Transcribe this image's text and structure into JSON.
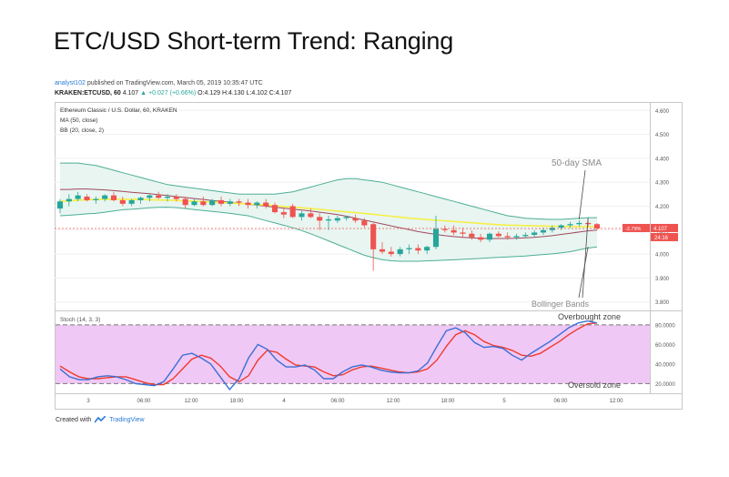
{
  "page": {
    "title": "ETC/USD Short-term Trend: Ranging"
  },
  "header": {
    "author": "analyst102",
    "published": "published on TradingView.com, March 05, 2019 10:35:47 UTC",
    "symbol": "KRAKEN:ETCUSD, 60",
    "last": "4.107",
    "change": "+0.027 (+0.66%)",
    "ohlc": "O:4.129 H:4.130 L:4.102 C:4.107"
  },
  "footer": {
    "created_with": "Created with",
    "brand": "TradingView"
  },
  "colors": {
    "up_candle": "#26a69a",
    "down_candle": "#ef5350",
    "sma": "#f5f046",
    "bb_fill": "#e6f4ef",
    "bb_line": "#4dae95",
    "bb_basis": "#a1495d",
    "stoch_k": "#3b6fd4",
    "stoch_d": "#ef3b2c",
    "stoch_band": "#f0c8f5",
    "price_tag": "#ef5350"
  },
  "chart_data": [
    {
      "type": "candlestick",
      "legend": [
        "Ethereum Classic / U.S. Dollar, 60, KRAKEN",
        "MA (50, close)",
        "BB (20, close, 2)"
      ],
      "ylim": [
        3.78,
        4.62
      ],
      "y_ticks": [
        "4.600",
        "4.500",
        "4.400",
        "4.300",
        "4.200",
        "4.100",
        "4.000",
        "3.900",
        "3.800"
      ],
      "x_tick_labels": [
        "3",
        "06:00",
        "12:00",
        "18:00",
        "4",
        "06:00",
        "12:00",
        "18:00",
        "5",
        "06:00",
        "12:00"
      ],
      "last_price_label": "4.107",
      "change_label": "-2.79%",
      "countdown_label": "24:16",
      "candles": [
        {
          "o": 4.19,
          "h": 4.23,
          "l": 4.17,
          "c": 4.22
        },
        {
          "o": 4.22,
          "h": 4.25,
          "l": 4.2,
          "c": 4.23
        },
        {
          "o": 4.23,
          "h": 4.26,
          "l": 4.22,
          "c": 4.245
        },
        {
          "o": 4.24,
          "h": 4.25,
          "l": 4.22,
          "c": 4.225
        },
        {
          "o": 4.225,
          "h": 4.24,
          "l": 4.21,
          "c": 4.23
        },
        {
          "o": 4.23,
          "h": 4.25,
          "l": 4.22,
          "c": 4.245
        },
        {
          "o": 4.245,
          "h": 4.26,
          "l": 4.22,
          "c": 4.225
        },
        {
          "o": 4.225,
          "h": 4.24,
          "l": 4.2,
          "c": 4.21
        },
        {
          "o": 4.21,
          "h": 4.23,
          "l": 4.2,
          "c": 4.225
        },
        {
          "o": 4.225,
          "h": 4.24,
          "l": 4.21,
          "c": 4.235
        },
        {
          "o": 4.235,
          "h": 4.25,
          "l": 4.22,
          "c": 4.245
        },
        {
          "o": 4.245,
          "h": 4.26,
          "l": 4.23,
          "c": 4.235
        },
        {
          "o": 4.235,
          "h": 4.25,
          "l": 4.22,
          "c": 4.24
        },
        {
          "o": 4.24,
          "h": 4.25,
          "l": 4.22,
          "c": 4.23
        },
        {
          "o": 4.23,
          "h": 4.24,
          "l": 4.19,
          "c": 4.205
        },
        {
          "o": 4.205,
          "h": 4.23,
          "l": 4.2,
          "c": 4.22
        },
        {
          "o": 4.22,
          "h": 4.24,
          "l": 4.2,
          "c": 4.205
        },
        {
          "o": 4.205,
          "h": 4.23,
          "l": 4.2,
          "c": 4.225
        },
        {
          "o": 4.225,
          "h": 4.24,
          "l": 4.2,
          "c": 4.21
        },
        {
          "o": 4.21,
          "h": 4.23,
          "l": 4.2,
          "c": 4.22
        },
        {
          "o": 4.22,
          "h": 4.23,
          "l": 4.2,
          "c": 4.215
        },
        {
          "o": 4.215,
          "h": 4.23,
          "l": 4.19,
          "c": 4.205
        },
        {
          "o": 4.205,
          "h": 4.22,
          "l": 4.19,
          "c": 4.215
        },
        {
          "o": 4.215,
          "h": 4.23,
          "l": 4.19,
          "c": 4.2
        },
        {
          "o": 4.205,
          "h": 4.215,
          "l": 4.17,
          "c": 4.175
        },
        {
          "o": 4.175,
          "h": 4.19,
          "l": 4.15,
          "c": 4.165
        },
        {
          "o": 4.2,
          "h": 4.21,
          "l": 4.15,
          "c": 4.155
        },
        {
          "o": 4.155,
          "h": 4.18,
          "l": 4.14,
          "c": 4.17
        },
        {
          "o": 4.17,
          "h": 4.19,
          "l": 4.15,
          "c": 4.155
        },
        {
          "o": 4.155,
          "h": 4.17,
          "l": 4.1,
          "c": 4.14
        },
        {
          "o": 4.14,
          "h": 4.16,
          "l": 4.1,
          "c": 4.145
        },
        {
          "o": 4.14,
          "h": 4.16,
          "l": 4.13,
          "c": 4.15
        },
        {
          "o": 4.15,
          "h": 4.16,
          "l": 4.14,
          "c": 4.155
        },
        {
          "o": 4.15,
          "h": 4.165,
          "l": 4.13,
          "c": 4.14
        },
        {
          "o": 4.14,
          "h": 4.15,
          "l": 4.11,
          "c": 4.12
        },
        {
          "o": 4.125,
          "h": 4.13,
          "l": 3.93,
          "c": 4.02
        },
        {
          "o": 4.02,
          "h": 4.05,
          "l": 4.0,
          "c": 4.01
        },
        {
          "o": 4.01,
          "h": 4.03,
          "l": 3.99,
          "c": 4.0
        },
        {
          "o": 4.0,
          "h": 4.03,
          "l": 3.99,
          "c": 4.02
        },
        {
          "o": 4.02,
          "h": 4.04,
          "l": 4.0,
          "c": 4.025
        },
        {
          "o": 4.025,
          "h": 4.04,
          "l": 4.0,
          "c": 4.015
        },
        {
          "o": 4.015,
          "h": 4.035,
          "l": 4.0,
          "c": 4.03
        },
        {
          "o": 4.03,
          "h": 4.16,
          "l": 4.02,
          "c": 4.105
        },
        {
          "o": 4.105,
          "h": 4.12,
          "l": 4.09,
          "c": 4.1
        },
        {
          "o": 4.1,
          "h": 4.12,
          "l": 4.08,
          "c": 4.09
        },
        {
          "o": 4.09,
          "h": 4.11,
          "l": 4.07,
          "c": 4.085
        },
        {
          "o": 4.085,
          "h": 4.1,
          "l": 4.06,
          "c": 4.07
        },
        {
          "o": 4.07,
          "h": 4.085,
          "l": 4.05,
          "c": 4.06
        },
        {
          "o": 4.06,
          "h": 4.09,
          "l": 4.05,
          "c": 4.085
        },
        {
          "o": 4.085,
          "h": 4.095,
          "l": 4.07,
          "c": 4.075
        },
        {
          "o": 4.075,
          "h": 4.09,
          "l": 4.06,
          "c": 4.07
        },
        {
          "o": 4.07,
          "h": 4.085,
          "l": 4.06,
          "c": 4.075
        },
        {
          "o": 4.075,
          "h": 4.09,
          "l": 4.07,
          "c": 4.08
        },
        {
          "o": 4.08,
          "h": 4.1,
          "l": 4.07,
          "c": 4.09
        },
        {
          "o": 4.09,
          "h": 4.11,
          "l": 4.08,
          "c": 4.1
        },
        {
          "o": 4.1,
          "h": 4.12,
          "l": 4.09,
          "c": 4.11
        },
        {
          "o": 4.11,
          "h": 4.125,
          "l": 4.1,
          "c": 4.12
        },
        {
          "o": 4.12,
          "h": 4.135,
          "l": 4.11,
          "c": 4.125
        },
        {
          "o": 4.125,
          "h": 4.14,
          "l": 4.115,
          "c": 4.13
        },
        {
          "o": 4.13,
          "h": 4.14,
          "l": 4.115,
          "c": 4.125
        },
        {
          "o": 4.125,
          "h": 4.13,
          "l": 4.1,
          "c": 4.107
        }
      ],
      "sma_50": [
        4.22,
        4.222,
        4.225,
        4.227,
        4.228,
        4.229,
        4.229,
        4.229,
        4.229,
        4.228,
        4.227,
        4.226,
        4.225,
        4.224,
        4.222,
        4.221,
        4.219,
        4.217,
        4.215,
        4.213,
        4.211,
        4.209,
        4.207,
        4.205,
        4.202,
        4.199,
        4.196,
        4.193,
        4.19,
        4.187,
        4.183,
        4.18,
        4.176,
        4.173,
        4.17,
        4.166,
        4.162,
        4.158,
        4.154,
        4.15,
        4.147,
        4.144,
        4.141,
        4.139,
        4.136,
        4.134,
        4.131,
        4.128,
        4.125,
        4.123,
        4.121,
        4.12,
        4.119,
        4.118,
        4.117,
        4.116,
        4.116,
        4.115,
        4.115,
        4.115,
        4.115
      ],
      "bb_upper": [
        4.38,
        4.38,
        4.38,
        4.375,
        4.37,
        4.36,
        4.35,
        4.34,
        4.33,
        4.32,
        4.31,
        4.3,
        4.29,
        4.285,
        4.28,
        4.275,
        4.27,
        4.265,
        4.26,
        4.255,
        4.25,
        4.25,
        4.25,
        4.25,
        4.25,
        4.255,
        4.26,
        4.27,
        4.28,
        4.29,
        4.3,
        4.31,
        4.315,
        4.315,
        4.31,
        4.305,
        4.3,
        4.29,
        4.28,
        4.27,
        4.26,
        4.25,
        4.24,
        4.23,
        4.22,
        4.21,
        4.2,
        4.19,
        4.18,
        4.17,
        4.16,
        4.155,
        4.15,
        4.148,
        4.146,
        4.145,
        4.145,
        4.147,
        4.15,
        4.152,
        4.152
      ],
      "bb_basis": [
        4.27,
        4.27,
        4.272,
        4.272,
        4.27,
        4.268,
        4.265,
        4.262,
        4.258,
        4.255,
        4.252,
        4.248,
        4.245,
        4.24,
        4.236,
        4.232,
        4.228,
        4.224,
        4.22,
        4.216,
        4.212,
        4.208,
        4.204,
        4.2,
        4.196,
        4.192,
        4.188,
        4.184,
        4.18,
        4.175,
        4.17,
        4.165,
        4.158,
        4.15,
        4.142,
        4.134,
        4.126,
        4.118,
        4.11,
        4.102,
        4.094,
        4.088,
        4.082,
        4.077,
        4.073,
        4.07,
        4.068,
        4.066,
        4.065,
        4.065,
        4.065,
        4.066,
        4.068,
        4.07,
        4.073,
        4.077,
        4.082,
        4.087,
        4.092,
        4.097,
        4.1
      ],
      "bb_lower": [
        4.16,
        4.162,
        4.165,
        4.168,
        4.17,
        4.175,
        4.18,
        4.185,
        4.187,
        4.19,
        4.193,
        4.195,
        4.196,
        4.194,
        4.19,
        4.186,
        4.182,
        4.178,
        4.174,
        4.17,
        4.165,
        4.16,
        4.15,
        4.14,
        4.13,
        4.12,
        4.11,
        4.098,
        4.085,
        4.07,
        4.055,
        4.04,
        4.025,
        4.01,
        3.995,
        3.985,
        3.977,
        3.972,
        3.97,
        3.97,
        3.97,
        3.972,
        3.973,
        3.975,
        3.976,
        3.978,
        3.98,
        3.982,
        3.984,
        3.986,
        3.988,
        3.99,
        3.992,
        3.995,
        3.998,
        4.001,
        4.005,
        4.01,
        4.018,
        4.025,
        4.03
      ],
      "annotations": [
        {
          "text": "50-day SMA",
          "target_index": 58,
          "target_value": 4.145
        },
        {
          "text": "Bollinger Bands",
          "target_index": 59,
          "target_value": 4.03
        },
        {
          "text": "Bollinger Bands",
          "target_index": 59,
          "target_value": 4.152
        }
      ]
    },
    {
      "type": "line",
      "legend": "Stoch (14, 3, 3)",
      "ylim": [
        12,
        92
      ],
      "y_ticks": [
        "80.0000",
        "60.0000",
        "40.0000",
        "20.0000"
      ],
      "bands": [
        20,
        80
      ],
      "series": [
        {
          "name": "%K",
          "values": [
            35,
            27,
            24,
            24,
            27,
            28,
            27,
            24,
            20,
            19,
            18,
            22,
            35,
            49,
            51,
            46,
            40,
            27,
            14,
            25,
            46,
            60,
            55,
            44,
            37,
            37,
            39,
            34,
            25,
            25,
            32,
            37,
            39,
            37,
            34,
            32,
            31,
            31,
            33,
            41,
            58,
            74,
            77,
            72,
            62,
            57,
            58,
            56,
            49,
            44,
            51,
            57,
            63,
            70,
            77,
            82,
            84,
            82
          ]
        },
        {
          "name": "%D",
          "values": [
            38,
            32,
            27,
            25,
            25,
            26,
            27,
            27,
            24,
            21,
            19,
            19,
            25,
            35,
            45,
            49,
            46,
            38,
            27,
            22,
            28,
            44,
            54,
            52,
            45,
            39,
            38,
            37,
            32,
            28,
            29,
            34,
            37,
            38,
            36,
            34,
            32,
            31,
            32,
            35,
            44,
            58,
            70,
            74,
            70,
            63,
            59,
            57,
            54,
            49,
            48,
            51,
            57,
            63,
            70,
            76,
            81,
            82
          ]
        }
      ],
      "annotations": [
        {
          "text": "Overbought zone",
          "target_index": 55,
          "target_value": 81
        },
        {
          "text": "Oversold zone",
          "target_index": 55,
          "target_value": 20
        }
      ]
    }
  ]
}
